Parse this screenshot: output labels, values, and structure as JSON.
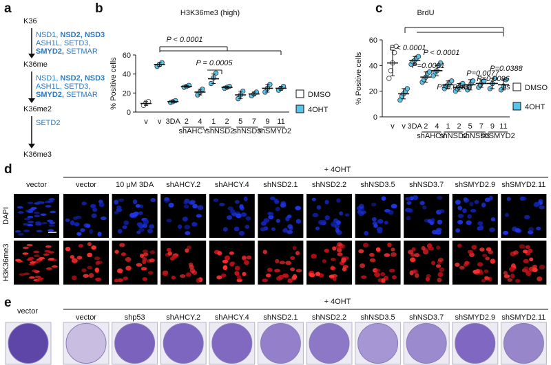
{
  "panel_labels": [
    "a",
    "b",
    "c",
    "d",
    "e"
  ],
  "pathway": {
    "states": [
      "K36",
      "K36me",
      "K36me2",
      "K36me3"
    ],
    "enzymes": [
      [
        [
          {
            "text": "NSD1,"
          },
          {
            "text": "NSD2,",
            "bold": true
          },
          {
            "text": "NSD3",
            "bold": true
          }
        ],
        [
          {
            "text": "ASH1L,"
          },
          {
            "text": "SETD3,"
          }
        ],
        [
          {
            "text": "SMYD2,",
            "bold": true
          },
          {
            "text": "SETMAR"
          }
        ]
      ],
      [
        [
          {
            "text": "NSD1,"
          },
          {
            "text": "NSD2,",
            "bold": true
          },
          {
            "text": "NSD3",
            "bold": true
          }
        ],
        [
          {
            "text": "ASH1L,"
          },
          {
            "text": "SETD3,"
          }
        ],
        [
          {
            "text": "SMYD2,",
            "bold": true
          },
          {
            "text": "SETMAR"
          }
        ]
      ],
      [
        [
          {
            "text": "SETD2"
          }
        ]
      ]
    ]
  },
  "chart_data": [
    {
      "type": "dotplot",
      "title": "H3K36me3 (high)",
      "y_label": "% Positive cells",
      "categories": [
        "v",
        "v",
        "3DA",
        "2",
        "4",
        "1",
        "2",
        "5",
        "7",
        "9",
        "11"
      ],
      "groups": [
        "shAHCY",
        "shNSD2",
        "shNSD3",
        "shSMYD2"
      ],
      "ylim": [
        0,
        60
      ],
      "yticks": [
        0,
        20,
        40,
        60
      ],
      "series": [
        {
          "name": "DMSO",
          "color": "#ffffff",
          "values": [
            9,
            null,
            null,
            null,
            null,
            null,
            null,
            null,
            null,
            null,
            null
          ],
          "errors": [
            2,
            null,
            null,
            null,
            null,
            null,
            null,
            null,
            null,
            null,
            null
          ],
          "points": [
            [
              7,
              10,
              11
            ],
            null,
            null,
            null,
            null,
            null,
            null,
            null,
            null,
            null,
            null
          ]
        },
        {
          "name": "4OHT",
          "color": "#5bc4e8",
          "values": [
            null,
            50,
            11,
            27,
            21,
            35,
            26,
            18,
            19,
            25,
            25
          ],
          "errors": [
            null,
            2,
            1,
            1,
            3,
            5,
            1,
            4,
            2,
            4,
            2
          ],
          "points": [
            null,
            [
              48,
              50,
              52
            ],
            [
              10,
              11,
              12
            ],
            [
              26,
              27,
              28
            ],
            [
              18,
              21,
              24
            ],
            [
              30,
              36,
              41
            ],
            [
              25,
              26,
              27
            ],
            [
              14,
              18,
              22
            ],
            [
              17,
              19,
              21
            ],
            [
              21,
              25,
              29
            ],
            [
              23,
              25,
              27
            ]
          ]
        }
      ],
      "annotations": [
        "P < 0.0001",
        "P = 0.0005"
      ]
    },
    {
      "type": "dotplot",
      "title": "BrdU",
      "y_label": "% Positive cells",
      "categories": [
        "v",
        "v",
        "3DA",
        "2",
        "4",
        "1",
        "2",
        "5",
        "7",
        "9",
        "11"
      ],
      "groups": [
        "shAHCY",
        "shNSD2",
        "shNSD3",
        "shSMYD2"
      ],
      "ylim": [
        0,
        60
      ],
      "yticks": [
        0,
        20,
        40,
        60
      ],
      "series": [
        {
          "name": "DMSO",
          "color": "#ffffff",
          "values": [
            42,
            null,
            null,
            null,
            null,
            null,
            null,
            null,
            null,
            null,
            null
          ],
          "errors": [
            10,
            null,
            null,
            null,
            null,
            null,
            null,
            null,
            null,
            null,
            null
          ],
          "points": [
            [
              30,
              36,
              42,
              50,
              55
            ],
            null,
            null,
            null,
            null,
            null,
            null,
            null,
            null,
            null,
            null
          ]
        },
        {
          "name": "4OHT",
          "color": "#5bc4e8",
          "values": [
            null,
            18,
            44,
            31,
            36,
            25,
            23,
            25,
            26,
            26,
            25
          ],
          "errors": [
            null,
            4,
            3,
            4,
            4,
            3,
            3,
            4,
            3,
            4,
            4
          ],
          "points": [
            null,
            [
              13,
              16,
              18,
              20,
              22
            ],
            [
              41,
              43,
              44,
              46,
              47
            ],
            [
              27,
              29,
              31,
              34,
              35
            ],
            [
              32,
              35,
              36,
              40,
              42
            ],
            [
              22,
              24,
              25,
              27,
              28
            ],
            [
              20,
              22,
              23,
              25,
              26
            ],
            [
              21,
              23,
              26,
              28
            ],
            [
              23,
              25,
              27,
              28
            ],
            [
              22,
              26,
              30
            ],
            [
              21,
              24,
              29
            ]
          ]
        }
      ],
      "annotations": [
        "P < 0.0001",
        "P < 0.0001",
        "P=0.0001",
        "P=0.0231",
        "ns",
        "P=0.0077",
        "P=0.0096",
        "P=0.0388",
        "ns"
      ]
    }
  ],
  "imaging": {
    "left_header": "vector",
    "treatment": "+ 4OHT",
    "columns": [
      "vector",
      "10 μM 3DA",
      "shAHCY.2",
      "shAHCY.4",
      "shNSD2.1",
      "shNSD2.2",
      "shNSD3.5",
      "shNSD3.7",
      "shSMYD2.9",
      "shSMYD2.11"
    ],
    "rows": [
      "DAPI",
      "H3K36me3"
    ]
  },
  "colony": {
    "left_header": "vector",
    "treatment": "+ 4OHT",
    "columns": [
      "vector",
      "shp53",
      "shAHCY.2",
      "shAHCY.4",
      "shNSD2.1",
      "shNSD2.2",
      "shNSD3.5",
      "shNSD3.7",
      "shSMYD2.9",
      "shSMYD2.11"
    ]
  }
}
